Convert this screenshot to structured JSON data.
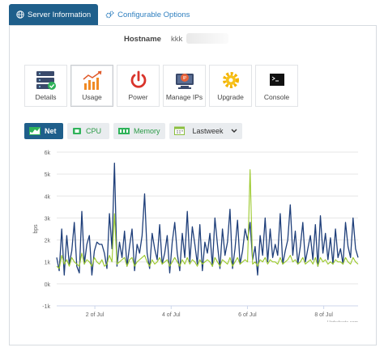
{
  "tabs": [
    {
      "label": "Server Information",
      "icon": "globe-icon",
      "active": true
    },
    {
      "label": "Configurable Options",
      "icon": "cogs-icon",
      "active": false
    }
  ],
  "hostname": {
    "label": "Hostname",
    "value": "kkk"
  },
  "actions": [
    {
      "label": "Details",
      "icon": "server-details-icon"
    },
    {
      "label": "Usage",
      "icon": "usage-chart-icon",
      "active": true
    },
    {
      "label": "Power",
      "icon": "power-icon"
    },
    {
      "label": "Manage IPs",
      "icon": "manage-ips-icon"
    },
    {
      "label": "Upgrade",
      "icon": "upgrade-gear-icon"
    },
    {
      "label": "Console",
      "icon": "console-icon"
    }
  ],
  "usage_tabs": [
    {
      "label": "Net",
      "icon": "net-chart-icon",
      "active": true
    },
    {
      "label": "CPU",
      "icon": "cpu-icon"
    },
    {
      "label": "Memory",
      "icon": "memory-icon"
    }
  ],
  "period": {
    "selected": "Lastweek",
    "icon": "calendar-icon"
  },
  "colors": {
    "primary": "#1f5f8b",
    "series_in": "#9bc92b",
    "series_out": "#1f3f7a",
    "accent_green": "#2a9a46"
  },
  "chart_data": {
    "type": "line",
    "title": "",
    "xlabel": "",
    "ylabel": "bps",
    "ylim": [
      -1000,
      6000
    ],
    "yticks": [
      -1000,
      0,
      1000,
      2000,
      3000,
      4000,
      5000,
      6000
    ],
    "ytick_labels": [
      "-1k",
      "0k",
      "1k",
      "2k",
      "3k",
      "4k",
      "5k",
      "6k"
    ],
    "xlim": [
      0,
      7.9
    ],
    "xticks": [
      1,
      3,
      5,
      7
    ],
    "xtick_labels": [
      "2 of Jul",
      "4 of Jul",
      "6 of Jul",
      "8 of Jul"
    ],
    "credit": "Highcharts.com",
    "series": [
      {
        "color": "#1f3f7a",
        "values": [
          1200,
          600,
          2500,
          400,
          2200,
          900,
          1500,
          2800,
          800,
          500,
          3300,
          900,
          1800,
          2200,
          400,
          1500,
          1900,
          1800,
          1800,
          1400,
          700,
          3200,
          1600,
          5500,
          800,
          1900,
          1200,
          2400,
          800,
          1700,
          2500,
          600,
          1800,
          1400,
          2200,
          4100,
          1400,
          700,
          2300,
          1600,
          1100,
          2700,
          900,
          1400,
          2200,
          500,
          1900,
          2800,
          1400,
          600,
          2300,
          1200,
          3300,
          1000,
          2600,
          1800,
          900,
          2700,
          600,
          1900,
          1400,
          2300,
          800,
          3000,
          1800,
          700,
          2500,
          1300,
          1900,
          3400,
          700,
          1600,
          2900,
          900,
          1500,
          2500,
          2000,
          2800,
          1100,
          1700,
          400,
          2200,
          1300,
          3000,
          1000,
          2500,
          1200,
          1800,
          1300,
          3200,
          900,
          1500,
          2000,
          3600,
          1300,
          2400,
          900,
          1700,
          2800,
          1000,
          1600,
          2200,
          1100,
          2700,
          800,
          3100,
          1400,
          2300,
          1100,
          2100,
          900,
          2500,
          1200,
          1600,
          900,
          2800,
          1700,
          1200,
          3000,
          1600,
          1200
        ]
      },
      {
        "color": "#9bc92b",
        "values": [
          800,
          700,
          1300,
          900,
          1100,
          800,
          1200,
          1000,
          900,
          800,
          1400,
          900,
          1100,
          1000,
          800,
          1200,
          1000,
          900,
          1100,
          800,
          900,
          1300,
          1000,
          3200,
          900,
          1000,
          1100,
          1200,
          800,
          1100,
          1200,
          800,
          1000,
          1100,
          1200,
          1300,
          1000,
          800,
          1100,
          900,
          1000,
          1200,
          900,
          1000,
          1100,
          800,
          1000,
          1200,
          1000,
          800,
          1100,
          900,
          1200,
          900,
          1100,
          1000,
          800,
          1100,
          900,
          1000,
          1100,
          1000,
          800,
          1200,
          1000,
          800,
          1100,
          1000,
          900,
          1200,
          800,
          1000,
          1200,
          900,
          1000,
          1100,
          1000,
          5200,
          900,
          1000,
          800,
          1100,
          1000,
          1200,
          900,
          1100,
          1000,
          1000,
          900,
          1200,
          900,
          1000,
          1100,
          1300,
          1000,
          1100,
          900,
          1000,
          1200,
          900,
          1000,
          1100,
          900,
          1200,
          800,
          1200,
          1000,
          1100,
          900,
          1000,
          900,
          1100,
          1000,
          1000,
          900,
          1200,
          1000,
          900,
          1200,
          1000,
          900
        ]
      }
    ]
  }
}
